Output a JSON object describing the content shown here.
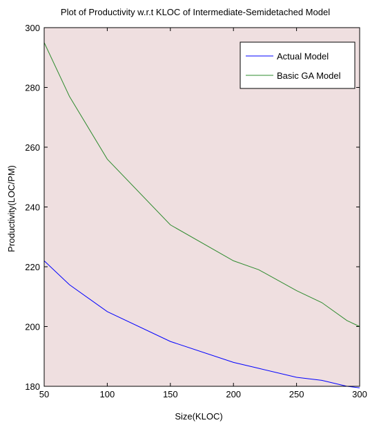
{
  "chart_data": {
    "type": "line",
    "title": "Plot of Productivity w.r.t KLOC of  Intermediate-Semidetached Model",
    "xlabel": "Size(KLOC)",
    "ylabel": "Productivity(LOC/PM)",
    "xlim": [
      50,
      300
    ],
    "ylim": [
      180,
      300
    ],
    "xticks": [
      50,
      100,
      150,
      200,
      250,
      300
    ],
    "yticks": [
      180,
      200,
      220,
      240,
      260,
      280,
      300
    ],
    "grid": false,
    "legend_position": "top-right",
    "background_color": "#efdfe0",
    "x": [
      50,
      70,
      100,
      150,
      200,
      220,
      250,
      270,
      290,
      300
    ],
    "series": [
      {
        "name": "Actual Model",
        "color": "#0000ff",
        "values": [
          222,
          214,
          205,
          195,
          188,
          186,
          183,
          182,
          180,
          179.5
        ]
      },
      {
        "name": "Basic GA Model",
        "color": "#2e8b2e",
        "values": [
          295,
          277,
          256,
          234,
          222,
          219,
          212,
          208,
          202,
          200
        ]
      }
    ]
  }
}
